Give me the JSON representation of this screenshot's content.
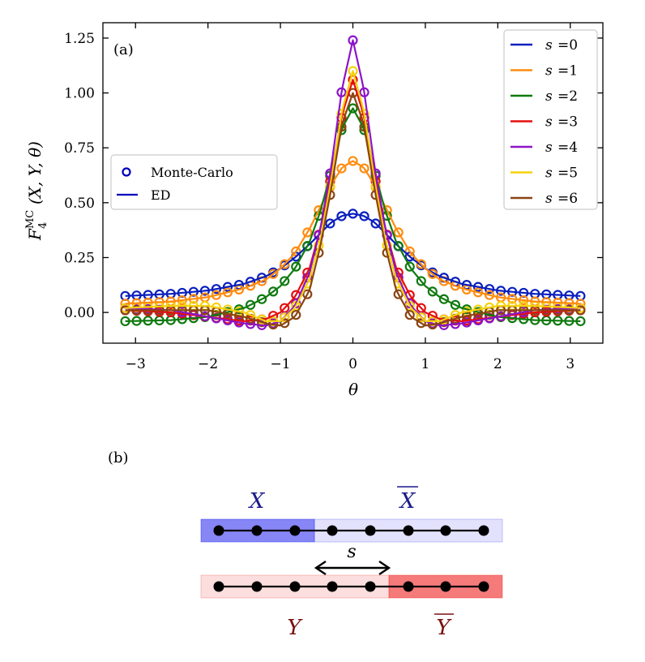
{
  "chart_data": {
    "type": "line",
    "panel_label": "(a)",
    "xlabel": "θ",
    "ylabel_main": "F",
    "ylabel_sup": "MC",
    "ylabel_sub": "4",
    "ylabel_args": "(X, Y, θ)",
    "xlim": [
      -3.45,
      3.45
    ],
    "ylim": [
      -0.14,
      1.32
    ],
    "xticks": [
      -3,
      -2,
      -1,
      0,
      1,
      2,
      3
    ],
    "xtick_labels": [
      "−3",
      "−2",
      "−1",
      "0",
      "1",
      "2",
      "3"
    ],
    "yticks": [
      0.0,
      0.25,
      0.5,
      0.75,
      1.0,
      1.25
    ],
    "ytick_labels": [
      "0.00",
      "0.25",
      "0.50",
      "0.75",
      "1.00",
      "1.25"
    ],
    "marker_legend": [
      {
        "label": "Monte-Carlo",
        "kind": "marker",
        "color": "#0000bb"
      },
      {
        "label": "ED",
        "kind": "line",
        "color": "#0000bb"
      }
    ],
    "series": [
      {
        "name": "s =0",
        "s_label": "s",
        "s_value": "=0",
        "color": "#0a1fbd",
        "ed_x": [
          -3.14,
          -2.5,
          -2.0,
          -1.5,
          -1.2,
          -1.0,
          -0.8,
          -0.6,
          -0.45,
          -0.3,
          -0.15,
          0,
          0.15,
          0.3,
          0.45,
          0.6,
          0.8,
          1.0,
          1.2,
          1.5,
          2.0,
          2.5,
          3.14
        ],
        "ed_y": [
          0.075,
          0.085,
          0.1,
          0.13,
          0.165,
          0.2,
          0.25,
          0.31,
          0.36,
          0.41,
          0.44,
          0.45,
          0.44,
          0.41,
          0.36,
          0.31,
          0.25,
          0.2,
          0.165,
          0.13,
          0.1,
          0.085,
          0.075
        ]
      },
      {
        "name": "s =1",
        "s_label": "s",
        "s_value": "=1",
        "color": "#ff8c0f",
        "ed_x": [
          -3.14,
          -2.5,
          -2.0,
          -1.5,
          -1.2,
          -1.0,
          -0.8,
          -0.6,
          -0.45,
          -0.3,
          -0.15,
          0,
          0.15,
          0.3,
          0.45,
          0.6,
          0.8,
          1.0,
          1.2,
          1.5,
          2.0,
          2.5,
          3.14
        ],
        "ed_y": [
          0.04,
          0.05,
          0.07,
          0.11,
          0.15,
          0.2,
          0.27,
          0.38,
          0.48,
          0.58,
          0.66,
          0.69,
          0.66,
          0.58,
          0.48,
          0.38,
          0.27,
          0.2,
          0.15,
          0.11,
          0.07,
          0.05,
          0.04
        ]
      },
      {
        "name": "s =2",
        "s_label": "s",
        "s_value": "=2",
        "color": "#0f7a0f",
        "ed_x": [
          -3.14,
          -2.5,
          -2.0,
          -1.5,
          -1.2,
          -1.0,
          -0.8,
          -0.6,
          -0.45,
          -0.3,
          -0.15,
          0,
          0.15,
          0.3,
          0.45,
          0.6,
          0.8,
          1.0,
          1.2,
          1.5,
          2.0,
          2.5,
          3.14
        ],
        "ed_y": [
          -0.04,
          -0.035,
          -0.02,
          0.02,
          0.07,
          0.12,
          0.2,
          0.32,
          0.46,
          0.64,
          0.84,
          0.93,
          0.84,
          0.64,
          0.46,
          0.32,
          0.2,
          0.12,
          0.07,
          0.02,
          -0.02,
          -0.035,
          -0.04
        ]
      },
      {
        "name": "s =3",
        "s_label": "s",
        "s_value": "=3",
        "color": "#e50f0f",
        "ed_x": [
          -3.14,
          -2.5,
          -2.0,
          -1.5,
          -1.2,
          -1.0,
          -0.8,
          -0.6,
          -0.45,
          -0.3,
          -0.15,
          0,
          0.15,
          0.3,
          0.45,
          0.6,
          0.8,
          1.0,
          1.2,
          1.5,
          2.0,
          2.5,
          3.14
        ],
        "ed_y": [
          0.01,
          0.0,
          -0.02,
          -0.04,
          -0.03,
          0.0,
          0.07,
          0.2,
          0.38,
          0.62,
          0.9,
          1.06,
          0.9,
          0.62,
          0.38,
          0.2,
          0.07,
          0.0,
          -0.03,
          -0.04,
          -0.02,
          0.0,
          0.01
        ]
      },
      {
        "name": "s =4",
        "s_label": "s",
        "s_value": "=4",
        "color": "#8c14c8",
        "ed_x": [
          -3.14,
          -2.5,
          -2.0,
          -1.5,
          -1.2,
          -1.0,
          -0.8,
          -0.6,
          -0.45,
          -0.3,
          -0.15,
          0,
          0.15,
          0.3,
          0.45,
          0.6,
          0.8,
          1.0,
          1.2,
          1.5,
          2.0,
          2.5,
          3.14
        ],
        "ed_y": [
          0.02,
          0.01,
          -0.02,
          -0.05,
          -0.06,
          -0.04,
          0.03,
          0.18,
          0.38,
          0.66,
          1.02,
          1.24,
          1.02,
          0.66,
          0.38,
          0.18,
          0.03,
          -0.04,
          -0.06,
          -0.05,
          -0.02,
          0.01,
          0.02
        ]
      },
      {
        "name": "s =5",
        "s_label": "s",
        "s_value": "=5",
        "color": "#f5d20f",
        "ed_x": [
          -3.14,
          -2.5,
          -2.0,
          -1.5,
          -1.2,
          -1.0,
          -0.8,
          -0.6,
          -0.45,
          -0.3,
          -0.15,
          0,
          0.15,
          0.3,
          0.45,
          0.6,
          0.8,
          1.0,
          1.2,
          1.5,
          2.0,
          2.5,
          3.14
        ],
        "ed_y": [
          0.02,
          0.03,
          0.03,
          0.0,
          -0.04,
          -0.04,
          0.02,
          0.15,
          0.33,
          0.6,
          0.92,
          1.1,
          0.92,
          0.6,
          0.33,
          0.15,
          0.02,
          -0.04,
          -0.04,
          0.0,
          0.03,
          0.03,
          0.02
        ]
      },
      {
        "name": "s =6",
        "s_label": "s",
        "s_value": "=6",
        "color": "#8b4513",
        "ed_x": [
          -3.14,
          -2.5,
          -2.0,
          -1.5,
          -1.2,
          -1.0,
          -0.8,
          -0.6,
          -0.45,
          -0.3,
          -0.15,
          0,
          0.15,
          0.3,
          0.45,
          0.6,
          0.8,
          1.0,
          1.2,
          1.5,
          2.0,
          2.5,
          3.14
        ],
        "ed_y": [
          0.01,
          0.01,
          0.01,
          -0.02,
          -0.05,
          -0.06,
          -0.02,
          0.1,
          0.3,
          0.56,
          0.86,
          1.0,
          0.86,
          0.56,
          0.3,
          0.1,
          -0.02,
          -0.06,
          -0.05,
          -0.02,
          0.01,
          0.01,
          0.01
        ]
      }
    ]
  },
  "diagram": {
    "panel_label": "(b)",
    "label_X": "X",
    "label_Xbar": "X",
    "label_Y": "Y",
    "label_Ybar": "Y",
    "shift_label": "s",
    "color_X": "#1a1a8c",
    "color_Y": "#7a1010",
    "top_chain_sites": 8,
    "bottom_chain_sites": 8
  }
}
